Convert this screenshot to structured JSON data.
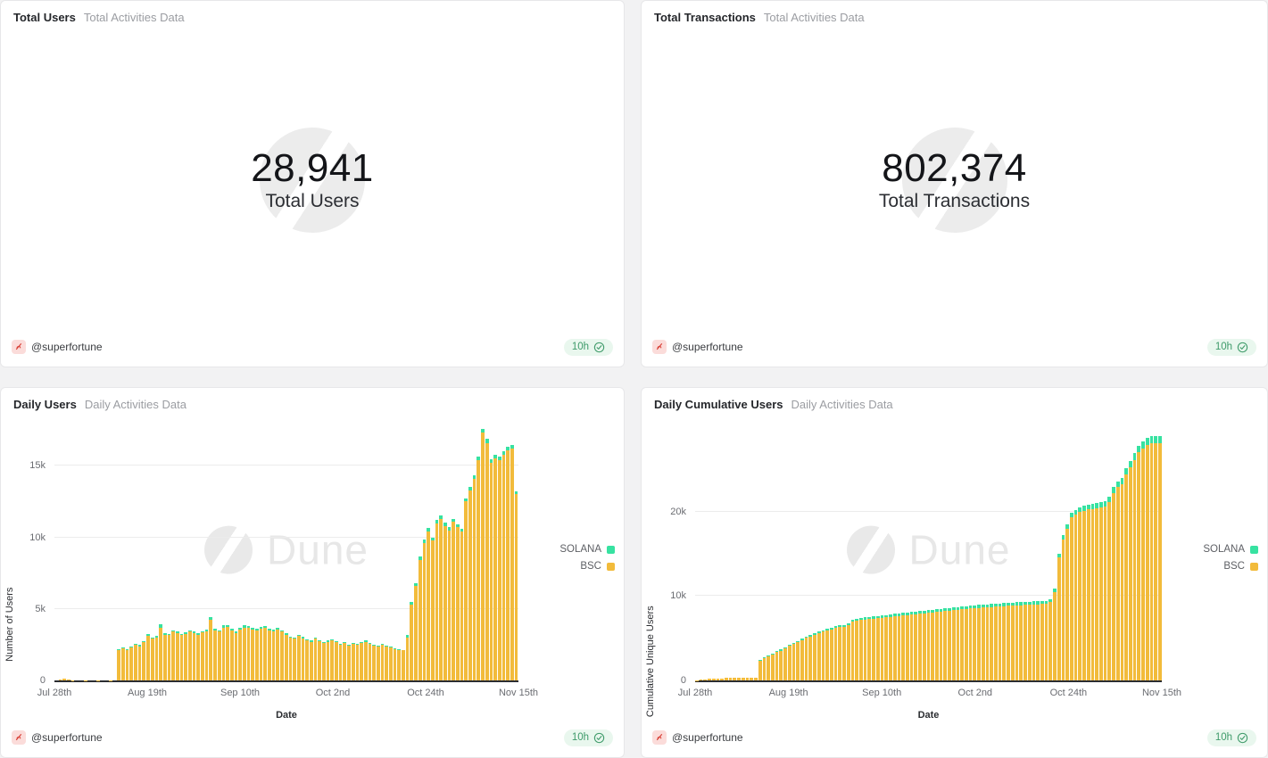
{
  "watermark_text": "Dune",
  "footer": {
    "author": "@superfortune",
    "badge_label": "10h"
  },
  "colors": {
    "bsc": "#F2BB3B",
    "solana": "#37E2A1",
    "badge_green": "#3f9b6a",
    "badge_bg": "#e9f7ee",
    "avatar_bg": "#fbdcda",
    "avatar_glyph": "#d9453c"
  },
  "panels": {
    "total_users": {
      "title": "Total Users",
      "subtitle": "Total Activities Data",
      "value": "28,941",
      "value_label": "Total Users"
    },
    "total_transactions": {
      "title": "Total Transactions",
      "subtitle": "Total Activities Data",
      "value": "802,374",
      "value_label": "Total Transactions"
    },
    "daily_users": {
      "title": "Daily Users",
      "subtitle": "Daily Activities Data"
    },
    "daily_cumulative_users": {
      "title": "Daily Cumulative Users",
      "subtitle": "Daily Activities Data"
    }
  },
  "chart_data": [
    {
      "id": "daily_users",
      "type": "bar",
      "stacked": true,
      "title": "Daily Users",
      "xlabel": "Date",
      "ylabel": "Number of Users",
      "ylim": [
        0,
        17700
      ],
      "grid": true,
      "legend_position": "right",
      "y_ticks": [
        {
          "value": 0,
          "label": "0"
        },
        {
          "value": 5000,
          "label": "5k"
        },
        {
          "value": 10000,
          "label": "10k"
        },
        {
          "value": 15000,
          "label": "15k"
        }
      ],
      "x_ticks": [
        {
          "pos": 0,
          "label": "Jul 28th"
        },
        {
          "pos": 22,
          "label": "Aug 19th"
        },
        {
          "pos": 44,
          "label": "Sep 10th"
        },
        {
          "pos": 66,
          "label": "Oct 2nd"
        },
        {
          "pos": 88,
          "label": "Oct 24th"
        },
        {
          "pos": 110,
          "label": "Nov 15th"
        }
      ],
      "legend": [
        {
          "name": "SOLANA",
          "color": "#37E2A1"
        },
        {
          "name": "BSC",
          "color": "#F2BB3B"
        }
      ],
      "series": [
        {
          "name": "BSC",
          "color": "#F2BB3B",
          "values": [
            0,
            80,
            120,
            60,
            20,
            0,
            0,
            10,
            0,
            0,
            15,
            0,
            0,
            10,
            0,
            2150,
            2250,
            2100,
            2300,
            2500,
            2400,
            2650,
            3100,
            2900,
            3000,
            3700,
            3200,
            3150,
            3400,
            3300,
            3150,
            3250,
            3400,
            3300,
            3200,
            3350,
            3450,
            4250,
            3500,
            3400,
            3700,
            3750,
            3500,
            3300,
            3550,
            3700,
            3650,
            3550,
            3500,
            3600,
            3650,
            3500,
            3450,
            3550,
            3400,
            3200,
            3000,
            2900,
            3100,
            2950,
            2800,
            2700,
            2900,
            2750,
            2600,
            2700,
            2800,
            2650,
            2500,
            2600,
            2450,
            2550,
            2500,
            2600,
            2700,
            2550,
            2450,
            2350,
            2500,
            2400,
            2300,
            2200,
            2150,
            2100,
            3000,
            5300,
            6600,
            8400,
            9600,
            10400,
            9800,
            11000,
            11300,
            10800,
            10500,
            11100,
            10700,
            10400,
            12500,
            13300,
            14100,
            15400,
            17300,
            16600,
            15200,
            15500,
            15400,
            15800,
            16100,
            16200,
            13000
          ]
        },
        {
          "name": "SOLANA",
          "color": "#37E2A1",
          "values": [
            0,
            0,
            0,
            0,
            0,
            0,
            0,
            0,
            0,
            0,
            0,
            0,
            0,
            0,
            0,
            60,
            70,
            60,
            70,
            80,
            70,
            80,
            150,
            90,
            100,
            220,
            110,
            100,
            120,
            100,
            90,
            100,
            110,
            100,
            90,
            100,
            110,
            180,
            120,
            100,
            150,
            140,
            110,
            100,
            120,
            160,
            130,
            110,
            100,
            120,
            130,
            110,
            100,
            110,
            100,
            90,
            80,
            90,
            100,
            90,
            80,
            80,
            90,
            80,
            70,
            80,
            90,
            80,
            70,
            80,
            70,
            80,
            70,
            80,
            90,
            80,
            70,
            60,
            70,
            60,
            60,
            60,
            50,
            50,
            150,
            200,
            220,
            250,
            250,
            230,
            200,
            220,
            230,
            210,
            200,
            210,
            200,
            190,
            220,
            240,
            250,
            260,
            280,
            270,
            250,
            250,
            240,
            250,
            260,
            250,
            200
          ]
        }
      ]
    },
    {
      "id": "daily_cumulative_users",
      "type": "bar",
      "stacked": true,
      "title": "Daily Cumulative Users",
      "xlabel": "Date",
      "ylabel": "Cumulative Unique Users",
      "ylim": [
        0,
        30000
      ],
      "grid": true,
      "legend_position": "right",
      "y_ticks": [
        {
          "value": 0,
          "label": "0"
        },
        {
          "value": 10000,
          "label": "10k"
        },
        {
          "value": 20000,
          "label": "20k"
        }
      ],
      "x_ticks": [
        {
          "pos": 0,
          "label": "Jul 28th"
        },
        {
          "pos": 22,
          "label": "Aug 19th"
        },
        {
          "pos": 44,
          "label": "Sep 10th"
        },
        {
          "pos": 66,
          "label": "Oct 2nd"
        },
        {
          "pos": 88,
          "label": "Oct 24th"
        },
        {
          "pos": 110,
          "label": "Nov 15th"
        }
      ],
      "legend": [
        {
          "name": "SOLANA",
          "color": "#37E2A1"
        },
        {
          "name": "BSC",
          "color": "#F2BB3B"
        }
      ],
      "series": [
        {
          "name": "BSC",
          "color": "#F2BB3B",
          "values": [
            30,
            90,
            150,
            200,
            230,
            250,
            265,
            275,
            285,
            295,
            305,
            315,
            325,
            335,
            345,
            2340,
            2630,
            2870,
            3110,
            3350,
            3540,
            3780,
            4070,
            4310,
            4550,
            4790,
            5030,
            5225,
            5420,
            5615,
            5760,
            5905,
            6050,
            6195,
            6290,
            6385,
            6530,
            6970,
            7065,
            7140,
            7205,
            7270,
            7325,
            7380,
            7435,
            7490,
            7545,
            7600,
            7645,
            7700,
            7755,
            7810,
            7865,
            7922,
            7969,
            8016,
            8063,
            8110,
            8167,
            8214,
            8261,
            8308,
            8365,
            8412,
            8459,
            8506,
            8553,
            8590,
            8628,
            8666,
            8704,
            8742,
            8770,
            8798,
            8836,
            8864,
            8892,
            8920,
            8948,
            8976,
            9004,
            9022,
            9050,
            9068,
            9250,
            10470,
            14540,
            16710,
            17980,
            19355,
            19635,
            19920,
            20105,
            20240,
            20330,
            20420,
            20510,
            20600,
            21130,
            22210,
            22890,
            23275,
            24360,
            25245,
            26130,
            27020,
            27510,
            27905,
            28102,
            28135,
            28140
          ]
        },
        {
          "name": "SOLANA",
          "color": "#37E2A1",
          "values": [
            0,
            0,
            0,
            0,
            0,
            0,
            0,
            0,
            0,
            0,
            0,
            0,
            0,
            0,
            0,
            60,
            70,
            80,
            90,
            100,
            110,
            120,
            130,
            140,
            150,
            160,
            170,
            175,
            180,
            185,
            190,
            195,
            200,
            205,
            210,
            215,
            220,
            230,
            235,
            240,
            245,
            250,
            255,
            260,
            265,
            270,
            275,
            280,
            285,
            290,
            295,
            300,
            305,
            308,
            311,
            314,
            317,
            320,
            323,
            326,
            329,
            332,
            335,
            338,
            341,
            344,
            347,
            350,
            352,
            354,
            356,
            358,
            360,
            362,
            364,
            366,
            368,
            370,
            372,
            374,
            376,
            378,
            380,
            382,
            400,
            430,
            460,
            490,
            520,
            545,
            565,
            580,
            595,
            610,
            620,
            630,
            640,
            650,
            670,
            690,
            710,
            725,
            740,
            755,
            770,
            780,
            790,
            795,
            798,
            800,
            801
          ]
        }
      ]
    }
  ]
}
